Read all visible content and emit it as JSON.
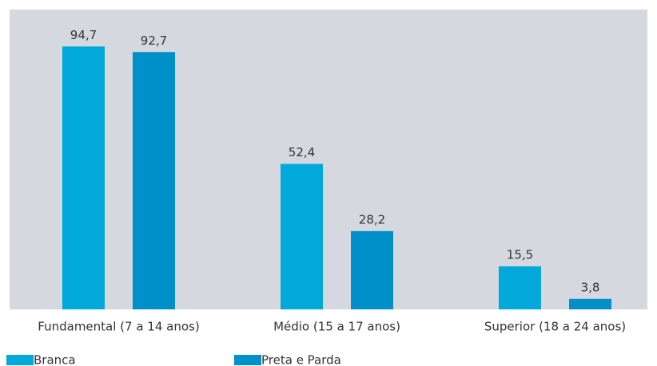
{
  "chart_data": {
    "type": "bar",
    "categories": [
      "Fundamental (7 a 14 anos)",
      "Médio (15 a 17 anos)",
      "Superior (18 a 24 anos)"
    ],
    "series": [
      {
        "name": "Branca",
        "color": "#00a9d9",
        "values": [
          94.7,
          52.4,
          15.5
        ],
        "value_labels": [
          "94,7",
          "52,4",
          "15,5"
        ]
      },
      {
        "name": "Preta e Parda",
        "color": "#0090c9",
        "values": [
          92.7,
          28.2,
          3.8
        ],
        "value_labels": [
          "92,7",
          "28,2",
          "3,8"
        ]
      }
    ],
    "ylim": [
      0,
      108
    ]
  }
}
